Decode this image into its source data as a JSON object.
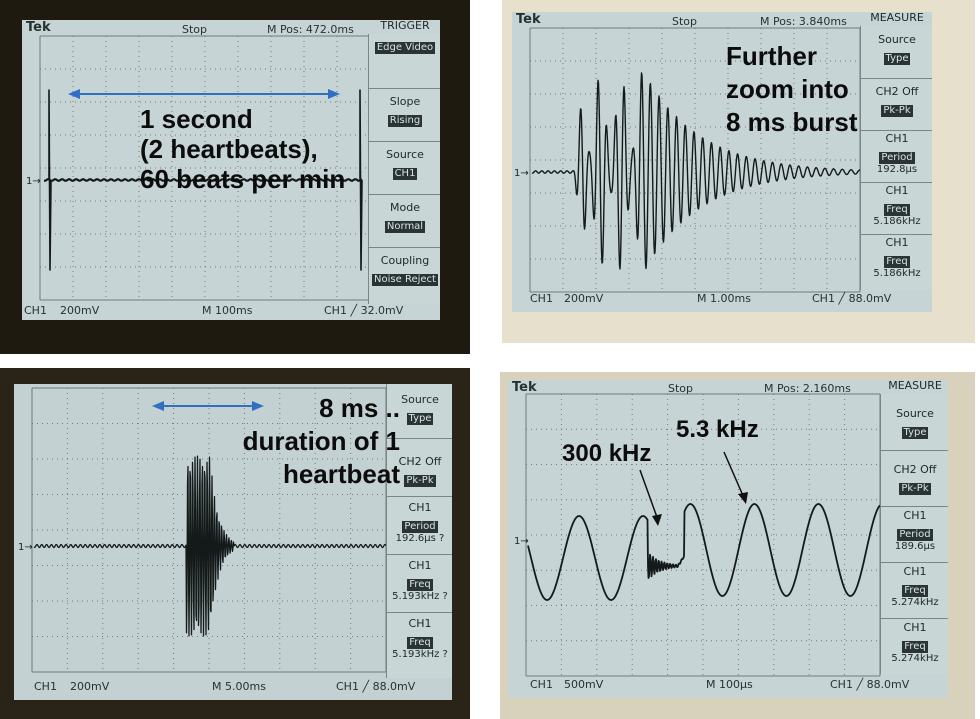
{
  "panels": [
    {
      "id": "p1",
      "header": {
        "brand": "Tek",
        "state": "Stop",
        "mpos": "M Pos: 472.0ms",
        "menu_title": "TRIGGER"
      },
      "menu": [
        {
          "title": "",
          "value": "Edge Video"
        },
        {
          "title": "Slope",
          "value": "Rising"
        },
        {
          "title": "Source",
          "value": "CH1"
        },
        {
          "title": "Mode",
          "value": "Normal"
        },
        {
          "title": "Coupling",
          "value": "Noise Reject"
        }
      ],
      "footer": {
        "ch": "CH1",
        "volts": "200mV",
        "time": "M 100ms",
        "trig": "CH1 ╱ 32.0mV"
      },
      "annotation": [
        "1 second",
        "(2 heartbeats),",
        "60 beats per min"
      ]
    },
    {
      "id": "p2",
      "header": {
        "brand": "Tek",
        "state": "Stop",
        "mpos": "M Pos: 3.840ms",
        "menu_title": "MEASURE"
      },
      "menu": [
        {
          "title": "Source",
          "value": "Type"
        },
        {
          "title": "CH2 Off",
          "value": "Pk-Pk"
        },
        {
          "title": "CH1",
          "value": "Period",
          "sub": "192.8µs"
        },
        {
          "title": "CH1",
          "value": "Freq",
          "sub": "5.186kHz"
        },
        {
          "title": "CH1",
          "value": "Freq",
          "sub": "5.186kHz"
        }
      ],
      "footer": {
        "ch": "CH1",
        "volts": "200mV",
        "time": "M 1.00ms",
        "trig": "CH1 ╱ 88.0mV"
      },
      "annotation": [
        "Further",
        "zoom into",
        "8 ms burst"
      ]
    },
    {
      "id": "p3",
      "header": {
        "brand": "",
        "state": "",
        "mpos": "",
        "menu_title": ""
      },
      "menu": [
        {
          "title": "Source",
          "value": "Type"
        },
        {
          "title": "CH2 Off",
          "value": "Pk-Pk"
        },
        {
          "title": "CH1",
          "value": "Period",
          "sub": "192.6µs ?"
        },
        {
          "title": "CH1",
          "value": "Freq",
          "sub": "5.193kHz ?"
        },
        {
          "title": "CH1",
          "value": "Freq",
          "sub": "5.193kHz ?"
        }
      ],
      "footer": {
        "ch": "CH1",
        "volts": "200mV",
        "time": "M 5.00ms",
        "trig": "CH1 ╱ 88.0mV"
      },
      "annotation": [
        "8 ms ..",
        "duration of 1",
        "heartbeat"
      ]
    },
    {
      "id": "p4",
      "header": {
        "brand": "Tek",
        "state": "Stop",
        "mpos": "M Pos: 2.160ms",
        "menu_title": "MEASURE"
      },
      "menu": [
        {
          "title": "Source",
          "value": "Type"
        },
        {
          "title": "CH2 Off",
          "value": "Pk-Pk"
        },
        {
          "title": "CH1",
          "value": "Period",
          "sub": "189.6µs"
        },
        {
          "title": "CH1",
          "value": "Freq",
          "sub": "5.274kHz"
        },
        {
          "title": "CH1",
          "value": "Freq",
          "sub": "5.274kHz"
        }
      ],
      "footer": {
        "ch": "CH1",
        "volts": "500mV",
        "time": "M 100µs",
        "trig": "CH1 ╱ 88.0mV"
      },
      "annotation": [
        "300 kHz",
        "5.3 kHz"
      ]
    }
  ],
  "colors": {
    "screen": "#c6d4d5",
    "grid": "#6e7c7c",
    "trace": "#141a1a",
    "arrow": "#2f6fc4"
  }
}
